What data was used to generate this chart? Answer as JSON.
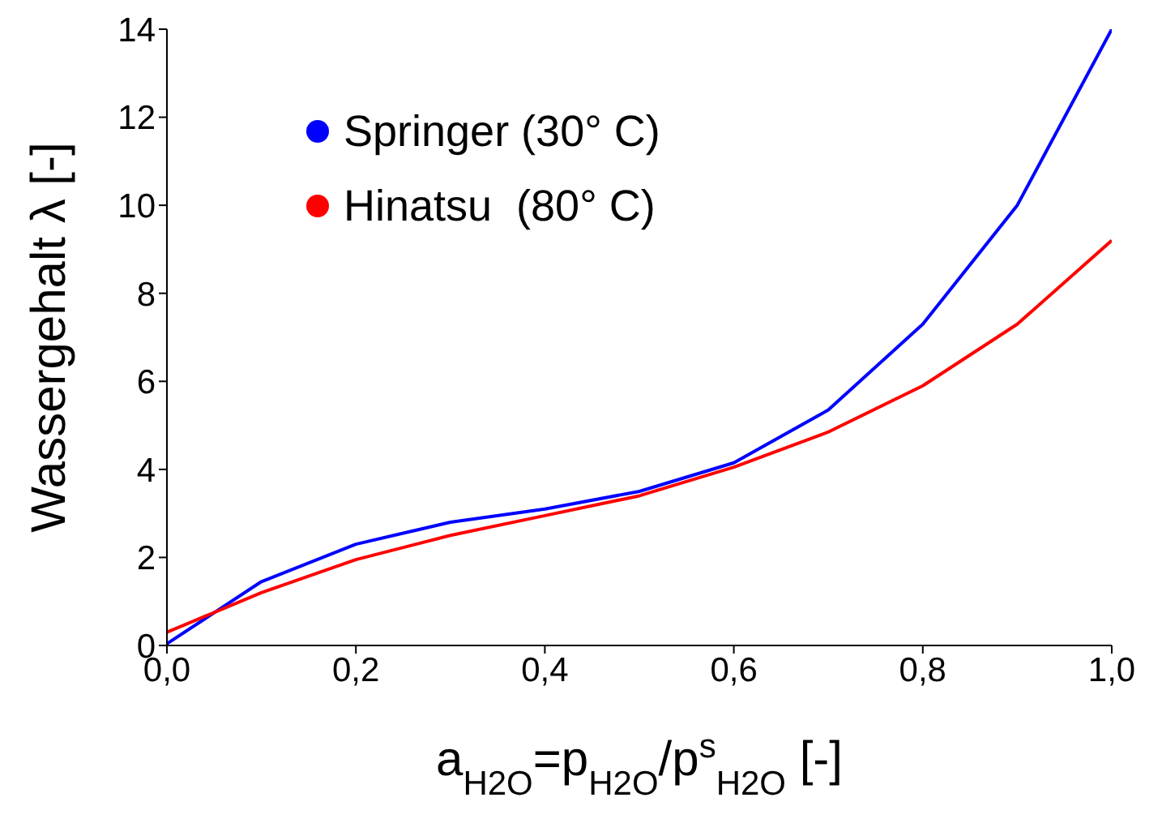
{
  "chart_data": {
    "type": "line",
    "xlabel": "a$_{H2O}$=p$_{H2O}$/p$^{s}$$_{H2O}$ [-]",
    "ylabel": "Wassergehalt λ [-]",
    "x": [
      0,
      0.1,
      0.2,
      0.3,
      0.4,
      0.5,
      0.6,
      0.7,
      0.8,
      0.9,
      1.0
    ],
    "series": [
      {
        "name": "Springer (30° C)",
        "color": "#0000ff",
        "values": [
          0.04,
          1.45,
          2.3,
          2.8,
          3.1,
          3.5,
          4.15,
          5.35,
          7.3,
          10.0,
          14.0
        ]
      },
      {
        "name": "Hinatsu  (80° C)",
        "color": "#ff0000",
        "values": [
          0.3,
          1.2,
          1.95,
          2.5,
          2.95,
          3.4,
          4.05,
          4.85,
          5.9,
          7.3,
          9.2
        ]
      }
    ],
    "xlim": [
      0,
      1
    ],
    "xticks": [
      {
        "value": 0,
        "label": "0,0"
      },
      {
        "value": 0.2,
        "label": "0,2"
      },
      {
        "value": 0.4,
        "label": "0,4"
      },
      {
        "value": 0.6,
        "label": "0,6"
      },
      {
        "value": 0.8,
        "label": "0,8"
      },
      {
        "value": 1,
        "label": "1,0"
      }
    ],
    "ylim": [
      0,
      14
    ],
    "yticks": [
      0,
      2,
      4,
      6,
      8,
      10,
      12,
      14
    ],
    "grid": false,
    "legend": "top left",
    "marker": "none",
    "line_style": "solid"
  }
}
